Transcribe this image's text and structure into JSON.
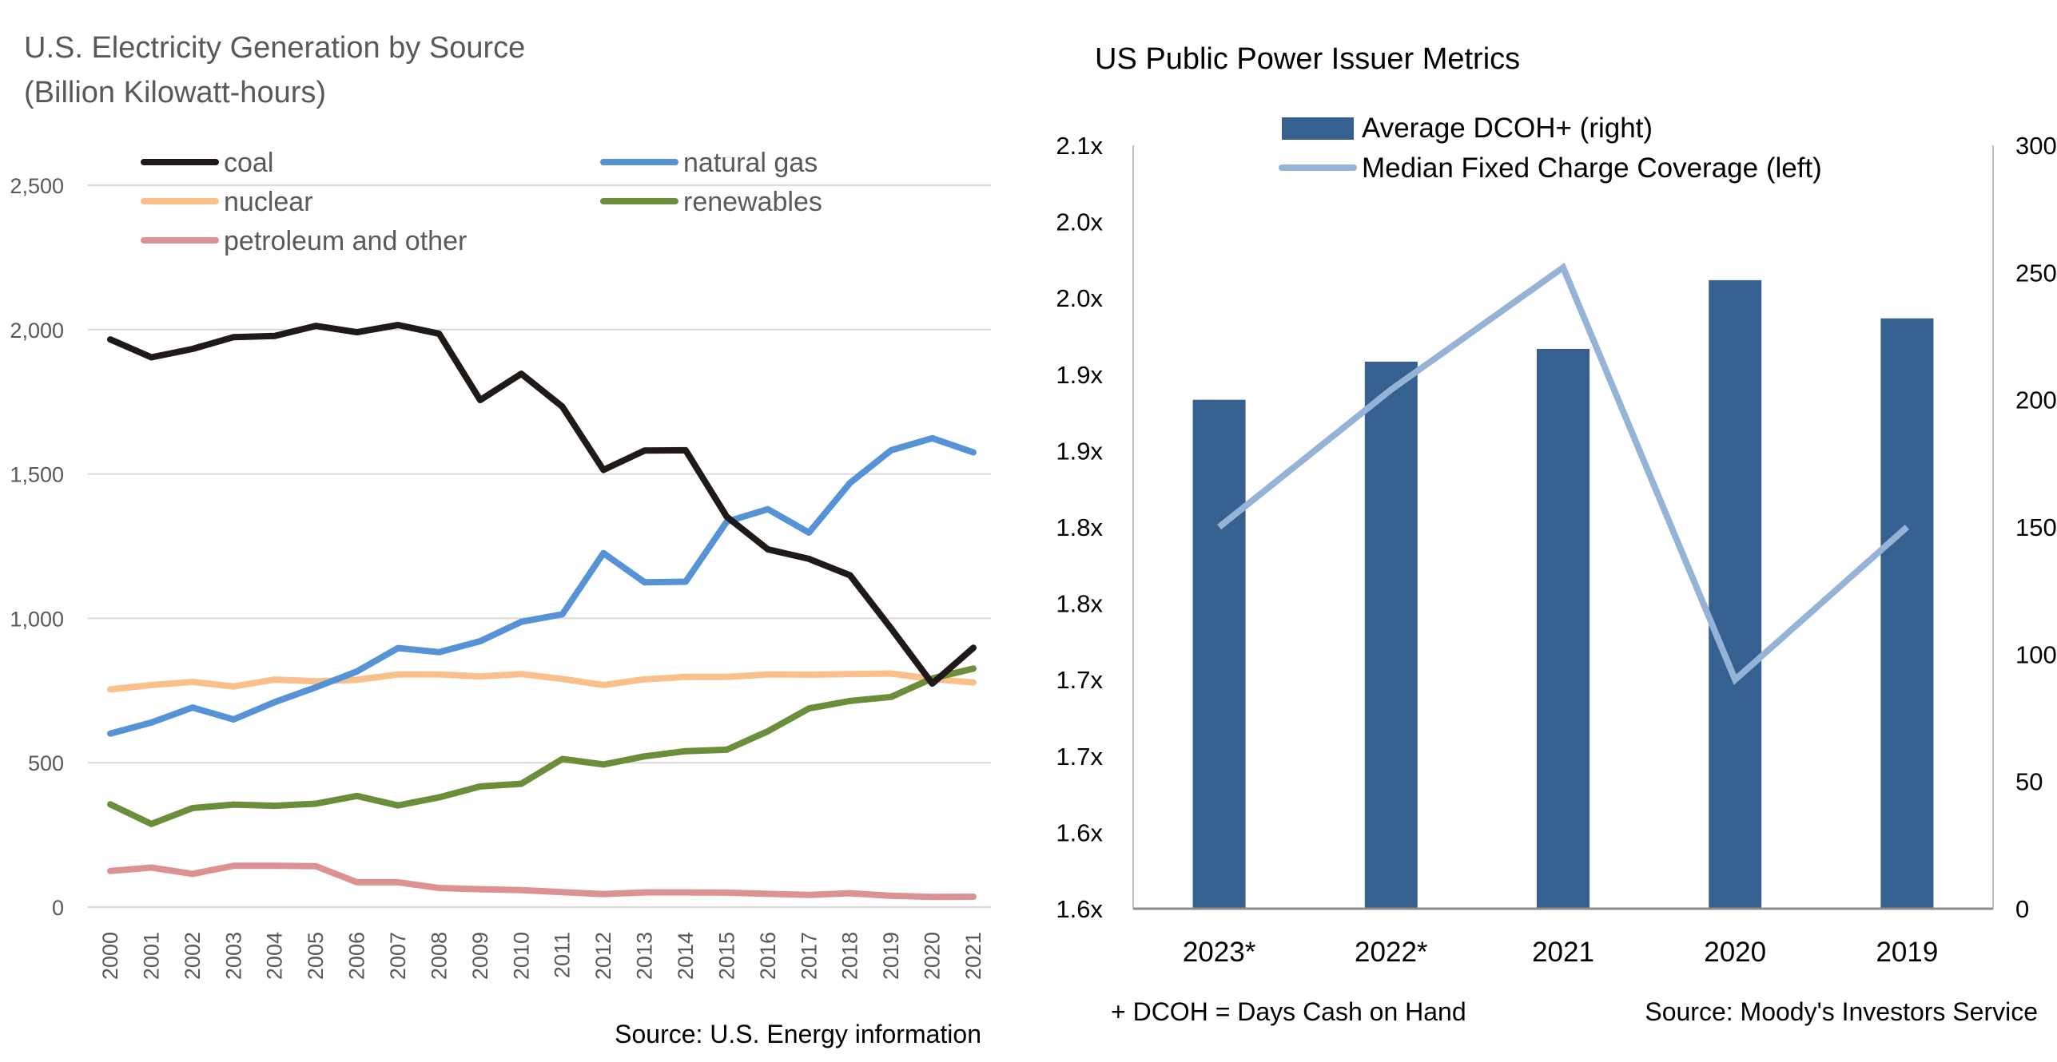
{
  "chart_data": [
    {
      "type": "line",
      "title": "U.S. Electricity Generation by Source",
      "subtitle": "(Billion Kilowatt-hours)",
      "xlabel": "",
      "ylabel": "",
      "x": [
        "2000",
        "2001",
        "2002",
        "2003",
        "2004",
        "2005",
        "2006",
        "2007",
        "2008",
        "2009",
        "2010",
        "2011",
        "2012",
        "2013",
        "2014",
        "2015",
        "2016",
        "2017",
        "2018",
        "2019",
        "2020",
        "2021"
      ],
      "ylim": [
        0,
        2500
      ],
      "yticks": [
        0,
        500,
        1000,
        1500,
        2000,
        2500
      ],
      "ytick_labels": [
        "0",
        "500",
        "1,000",
        "1,500",
        "2,000",
        "2,500"
      ],
      "grid": true,
      "legend_position": "top",
      "series": [
        {
          "name": "coal",
          "color": "#1f1a17",
          "values": [
            1966,
            1904,
            1933,
            1974,
            1978,
            2013,
            1991,
            2016,
            1986,
            1756,
            1847,
            1733,
            1514,
            1581,
            1582,
            1352,
            1239,
            1206,
            1149,
            965,
            774,
            898
          ]
        },
        {
          "name": "natural gas",
          "color": "#5593d6",
          "values": [
            601,
            639,
            691,
            650,
            710,
            761,
            816,
            897,
            883,
            921,
            988,
            1014,
            1226,
            1125,
            1127,
            1335,
            1378,
            1297,
            1469,
            1582,
            1624,
            1575
          ]
        },
        {
          "name": "nuclear",
          "color": "#f9c08c",
          "values": [
            754,
            769,
            780,
            764,
            788,
            782,
            787,
            806,
            806,
            799,
            807,
            790,
            769,
            789,
            797,
            797,
            806,
            805,
            807,
            809,
            790,
            778
          ]
        },
        {
          "name": "renewables",
          "color": "#6b8e3a",
          "values": [
            356,
            288,
            343,
            355,
            351,
            358,
            385,
            352,
            380,
            418,
            427,
            513,
            494,
            522,
            540,
            545,
            609,
            688,
            714,
            728,
            792,
            826
          ]
        },
        {
          "name": "petroleum and other",
          "color": "#dc9292",
          "values": [
            125,
            137,
            115,
            143,
            143,
            142,
            86,
            86,
            66,
            62,
            59,
            52,
            45,
            51,
            51,
            50,
            46,
            42,
            48,
            39,
            35,
            36
          ]
        }
      ],
      "source": "Source: U.S. Energy information"
    },
    {
      "type": "bar",
      "title": "US Public Power Issuer Metrics",
      "categories": [
        "2023*",
        "2022*",
        "2021",
        "2020",
        "2019"
      ],
      "legend_position": "top",
      "y_left": {
        "ylim": [
          1.6,
          2.1
        ],
        "tick_values": [
          1.6,
          1.65,
          1.7,
          1.75,
          1.8,
          1.85,
          1.9,
          1.95,
          2.0,
          2.05,
          2.1
        ],
        "tick_labels": [
          "1.6x",
          "1.6x",
          "1.7x",
          "1.7x",
          "1.8x",
          "1.8x",
          "1.9x",
          "1.9x",
          "2.0x",
          "2.0x",
          "2.1x"
        ]
      },
      "y_right": {
        "ylim": [
          0,
          300
        ],
        "tick_values": [
          0,
          50,
          100,
          150,
          200,
          250,
          300
        ],
        "tick_labels": [
          "0",
          "50",
          "100",
          "150",
          "200",
          "250",
          "300"
        ]
      },
      "series": [
        {
          "name": "Average DCOH+ (right)",
          "kind": "bar",
          "axis": "right",
          "color": "#35608f",
          "values": [
            200,
            215,
            220,
            247,
            232
          ]
        },
        {
          "name": "Median Fixed Charge Coverage (left)",
          "kind": "line",
          "axis": "left",
          "color": "#95b3d7",
          "values": [
            1.85,
            1.94,
            2.02,
            1.75,
            1.85
          ]
        }
      ],
      "footnote": "+ DCOH = Days Cash on Hand",
      "source": "Source: Moody's Investors Service"
    }
  ]
}
